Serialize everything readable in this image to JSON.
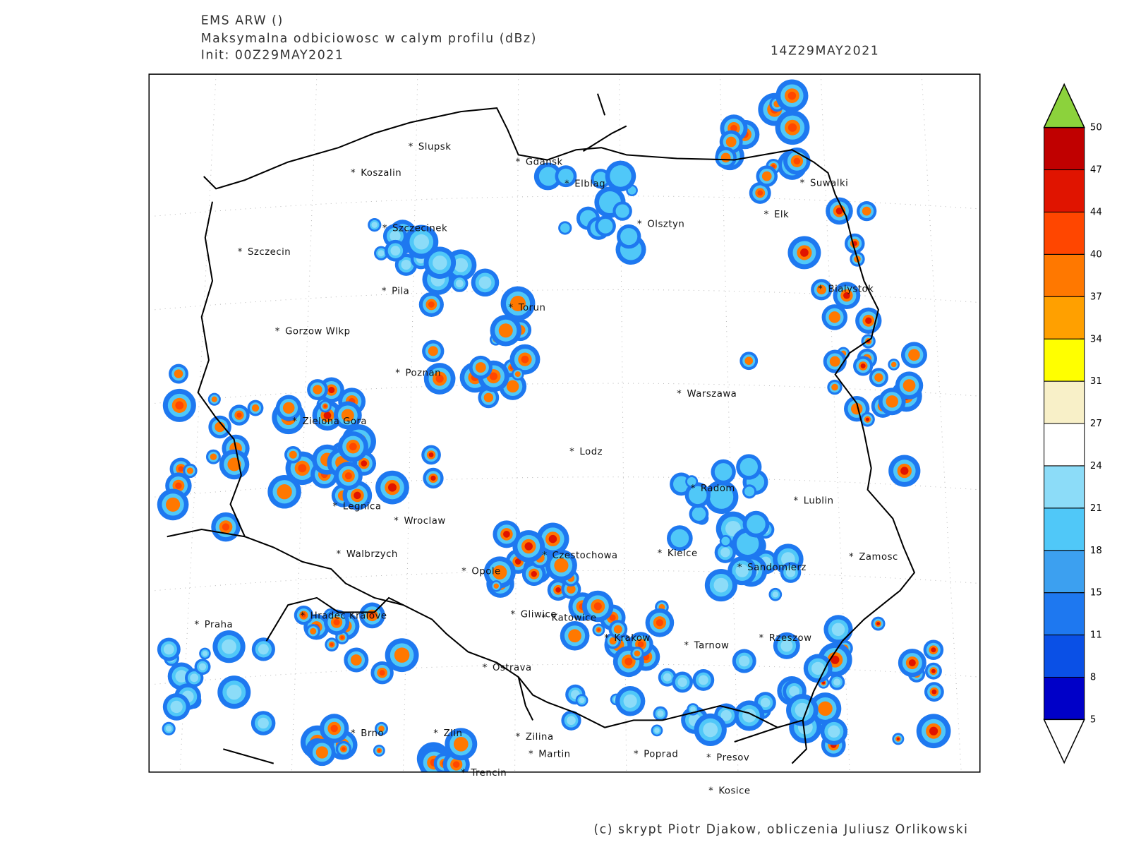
{
  "header": {
    "model": "EMS ARW ()",
    "product": "Maksymalna odbiciowosc w calym profilu (dBz)",
    "init": "Init: 00Z29MAY2021",
    "valid": "14Z29MAY2021"
  },
  "colorbar": {
    "levels": [
      5,
      8,
      11,
      15,
      18,
      21,
      24,
      27,
      31,
      34,
      37,
      40,
      44,
      47,
      50
    ],
    "colors": [
      "#0000c8",
      "#0a50e6",
      "#1e78f0",
      "#3ca0f0",
      "#50c8f8",
      "#8cdcf8",
      "#ffffff",
      "#f8f0c8",
      "#ffff00",
      "#ffa000",
      "#ff7800",
      "#ff4600",
      "#e01400",
      "#c00000"
    ],
    "over_color": "#8cd23c",
    "under_color": "#ffffff"
  },
  "cities": [
    "Slupsk",
    "Koszalin",
    "Gdansk",
    "Elblag",
    "Szczecinek",
    "Szczecin",
    "Olsztyn",
    "Suwalki",
    "Elk",
    "Bialystok",
    "Pila",
    "Torun",
    "Gorzow Wlkp",
    "Poznan",
    "Warszawa",
    "Zielona Gora",
    "Lodz",
    "Radom",
    "Lublin",
    "Legnica",
    "Wroclaw",
    "Walbrzych",
    "Czestochowa",
    "Kielce",
    "Zamosc",
    "Sandomierz",
    "Opole",
    "Praha",
    "Hradec Kralove",
    "Gliwice",
    "Katowice",
    "Krakow",
    "Tarnow",
    "Rzeszow",
    "Ostrava",
    "Brno",
    "Zlin",
    "Zilina",
    "Martin",
    "Poprad",
    "Presov",
    "Trencin",
    "Kosice"
  ],
  "footer": "(c) skrypt Piotr Djakow, obliczenia Juliusz Orlikowski"
}
